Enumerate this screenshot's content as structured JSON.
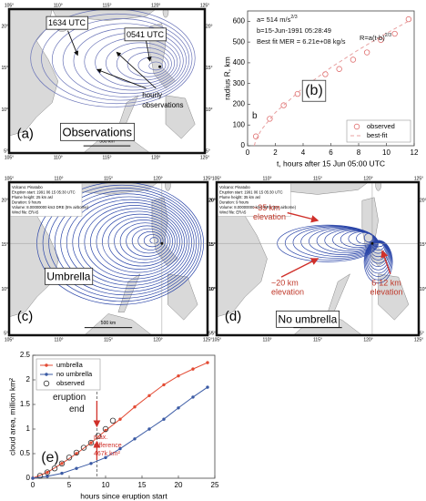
{
  "chart_data": [
    {
      "type": "line",
      "xlabel": "t, hours after 15 Jun 05:00 UTC",
      "ylabel": "radius R, km",
      "xlim": [
        0,
        12
      ],
      "xticks": [
        0,
        2,
        4,
        6,
        8,
        10,
        12
      ],
      "ylim": [
        0,
        650
      ],
      "yticks": [
        0,
        100,
        200,
        300,
        400,
        500,
        600
      ],
      "legend": "lower right",
      "series": [
        {
          "name": "observed",
          "color": "#e07070",
          "marker": "circle-open",
          "linestyle": "none",
          "x": [
            0.6,
            1.6,
            2.6,
            3.6,
            4.6,
            5.6,
            6.6,
            7.6,
            8.6,
            9.6,
            10.6,
            11.6
          ],
          "values": [
            45,
            130,
            195,
            250,
            290,
            345,
            370,
            415,
            450,
            510,
            540,
            610
          ]
        },
        {
          "name": "best-fit",
          "color": "#e8a0a0",
          "marker": "none",
          "linestyle": "dashed",
          "x": [
            0.48,
            0.6,
            1,
            2,
            4,
            6,
            8,
            10,
            11.6
          ],
          "values": [
            0,
            29,
            78,
            160,
            279,
            377,
            463,
            542,
            601
          ]
        }
      ],
      "annotations": [
        {
          "text": "a= 514 m/s",
          "sup": "2/3"
        },
        {
          "text": "b=15-Jun-1991 05:28:49"
        },
        {
          "text": "Best fit MER = 6.21e+08 kg/s"
        },
        {
          "text": "R=a(t-b)",
          "sup": "2/3"
        },
        {
          "text": "(b)"
        },
        {
          "text": "b"
        }
      ]
    },
    {
      "type": "line",
      "xlabel": "hours since eruption start",
      "ylabel": "cloud area, million km²",
      "xlim": [
        0,
        25
      ],
      "xticks": [
        0,
        5,
        10,
        15,
        20,
        25
      ],
      "ylim": [
        0,
        2.5
      ],
      "yticks": [
        0,
        0.5,
        1,
        1.5,
        2,
        2.5
      ],
      "legend": "upper left",
      "vline": 8.8,
      "series": [
        {
          "name": "umbrella",
          "color": "#e34a33",
          "marker": "dot",
          "linestyle": "solid",
          "x": [
            0,
            2,
            4,
            6,
            8,
            10,
            12,
            14,
            16,
            18,
            20,
            22,
            24
          ],
          "values": [
            0,
            0.12,
            0.3,
            0.5,
            0.72,
            0.97,
            1.2,
            1.45,
            1.68,
            1.9,
            2.08,
            2.22,
            2.35
          ]
        },
        {
          "name": "no umbrella",
          "color": "#3b5ba5",
          "marker": "dot",
          "linestyle": "solid",
          "x": [
            0,
            2,
            4,
            6,
            8,
            10,
            12,
            14,
            16,
            18,
            20,
            22,
            24
          ],
          "values": [
            0,
            0.04,
            0.1,
            0.2,
            0.3,
            0.42,
            0.6,
            0.8,
            1.0,
            1.2,
            1.43,
            1.65,
            1.85
          ]
        },
        {
          "name": "observed",
          "color": "#333333",
          "marker": "circle-open",
          "linestyle": "none",
          "x": [
            1,
            2,
            3,
            4,
            5,
            6,
            7,
            8,
            9,
            10,
            11
          ],
          "values": [
            0.05,
            0.12,
            0.2,
            0.3,
            0.42,
            0.52,
            0.62,
            0.72,
            0.86,
            1.0,
            1.17
          ]
        }
      ],
      "annotations": [
        {
          "text": "eruption"
        },
        {
          "text": "end"
        },
        {
          "text": "max."
        },
        {
          "text": "difference"
        },
        {
          "text": "467k km²"
        },
        {
          "text": "(e)"
        }
      ]
    }
  ],
  "maps": [
    {
      "lon_ticks": [
        "105°",
        "110°",
        "115°",
        "120°",
        "125°"
      ],
      "lat_ticks": [
        "20°",
        "15°",
        "10°",
        "5°"
      ],
      "scale": "500 km",
      "labels": [
        "1634 UTC",
        "0541 UTC",
        "hourly",
        "observations",
        "Observations",
        "(a)"
      ]
    },
    {
      "lon_ticks": [
        "105°",
        "110°",
        "115°",
        "120°",
        "125°"
      ],
      "lat_ticks": [
        "20°",
        "15°",
        "10°",
        "5°"
      ],
      "scale": "500 km",
      "info": [
        "Volcano: Pinatubo",
        "Eruption start: 1991 06 15 05:30 UTC",
        "Plume height: 25 km asl",
        "Duration: 9 hours",
        "Volume: 8.00000000 km3 DRE (5% airborne)",
        "Wind file: ERA5"
      ],
      "labels": [
        "Umbrella",
        "(c)"
      ]
    },
    {
      "lon_ticks": [
        "105°",
        "110°",
        "115°",
        "120°",
        "125°"
      ],
      "lat_ticks": [
        "20°",
        "15°",
        "10°",
        "5°"
      ],
      "scale": "500 km",
      "info": [
        "Volcano: Pinatubo",
        "Eruption start: 1991 06 15 05:30 UTC",
        "Plume height: 35 km asl",
        "Duration: 9 hours",
        "Volume: 8.00000000 km3 DRE (5% airborne)",
        "Wind file: ERA5"
      ],
      "labels": [
        "~35 km",
        "elevation",
        "~20 km",
        "elevation",
        "6-12 km",
        "elevation",
        "No umbrella",
        "(d)"
      ]
    }
  ]
}
